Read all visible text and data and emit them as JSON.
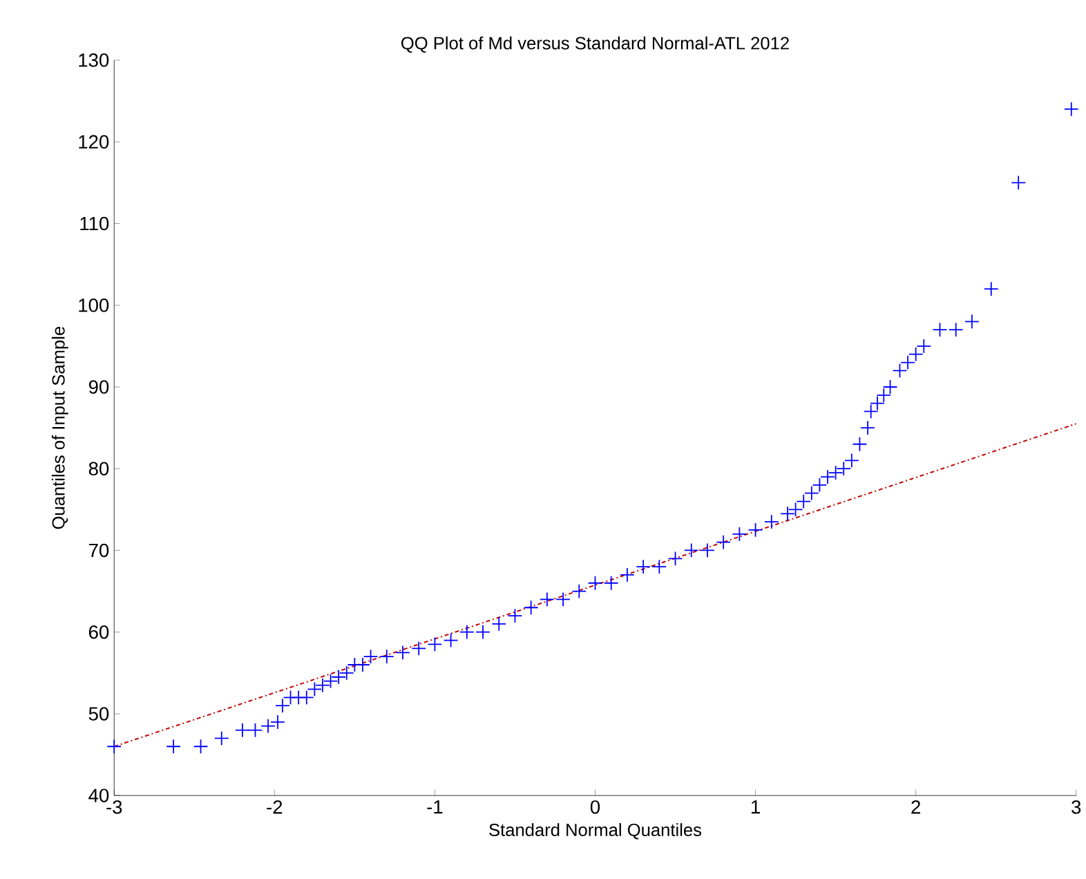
{
  "chart_data": {
    "type": "scatter",
    "title": "QQ Plot of Md versus Standard Normal-ATL 2012",
    "xlabel": "Standard Normal Quantiles",
    "ylabel": "Quantiles of Input Sample",
    "xlim": [
      -3,
      3
    ],
    "ylim": [
      40,
      130
    ],
    "xticks": [
      -3,
      -2,
      -1,
      0,
      1,
      2,
      3
    ],
    "yticks": [
      40,
      50,
      60,
      70,
      80,
      90,
      100,
      110,
      120,
      130
    ],
    "grid": false,
    "series": [
      {
        "marker": "cross",
        "color": "#0000ff",
        "x": [
          -3,
          -2.63,
          -2.46,
          -2.33,
          -2.2,
          -2.12,
          -2.04,
          -1.98,
          -1.95,
          -1.9,
          -1.85,
          -1.8,
          -1.75,
          -1.7,
          -1.65,
          -1.6,
          -1.55,
          -1.5,
          -1.45,
          -1.4,
          -1.3,
          -1.2,
          -1.1,
          -1.0,
          -0.9,
          -0.8,
          -0.7,
          -0.6,
          -0.5,
          -0.4,
          -0.3,
          -0.2,
          -0.1,
          0,
          0.1,
          0.2,
          0.3,
          0.4,
          0.5,
          0.6,
          0.7,
          0.8,
          0.9,
          1.0,
          1.1,
          1.2,
          1.25,
          1.3,
          1.35,
          1.4,
          1.45,
          1.5,
          1.55,
          1.6,
          1.65,
          1.7,
          1.72,
          1.76,
          1.8,
          1.84,
          1.9,
          1.95,
          2.0,
          2.05,
          2.15,
          2.25,
          2.35,
          2.47,
          2.64,
          2.97
        ],
        "values": [
          46,
          46,
          46,
          47,
          48,
          48,
          48.5,
          49,
          51,
          52,
          52,
          52,
          53,
          53.5,
          54,
          54.5,
          55,
          56,
          56,
          57,
          57,
          57.5,
          58,
          58.5,
          59,
          60,
          60,
          61,
          62,
          63,
          64,
          64,
          65,
          66,
          66,
          67,
          68,
          68,
          69,
          70,
          70,
          71,
          72,
          72.5,
          73.5,
          74.5,
          75,
          76,
          77,
          78,
          79,
          79.5,
          80,
          81,
          83,
          85,
          87,
          88,
          89,
          90,
          92,
          93,
          94,
          95,
          97,
          97,
          98,
          102,
          115,
          124
        ]
      },
      {
        "type": "line",
        "color": "#c00000",
        "line_style": "dashdot",
        "x": [
          -3,
          3
        ],
        "values": [
          46,
          85.5
        ]
      }
    ]
  }
}
